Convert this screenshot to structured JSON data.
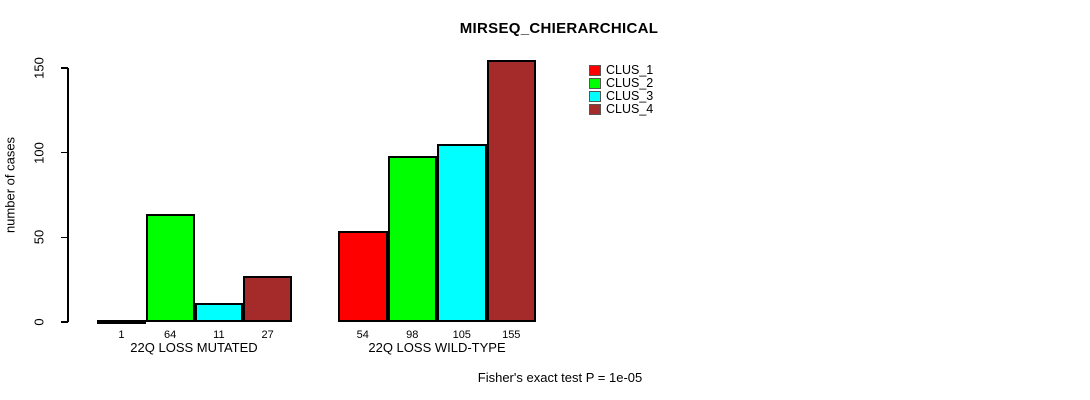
{
  "title": "MIRSEQ_CHIERARCHICAL",
  "chart_data": {
    "type": "bar",
    "title": "MIRSEQ_CHIERARCHICAL",
    "xlabel": "",
    "ylabel": "number of cases",
    "ylim": [
      0,
      155
    ],
    "yticks": [
      0,
      50,
      100,
      150
    ],
    "grid": false,
    "legend_position": "top-right",
    "categories": [
      "22Q LOSS MUTATED",
      "22Q LOSS WILD-TYPE"
    ],
    "series": [
      {
        "name": "CLUS_1",
        "color": "#FF0000",
        "values": [
          1,
          54
        ]
      },
      {
        "name": "CLUS_2",
        "color": "#00FF00",
        "values": [
          64,
          98
        ]
      },
      {
        "name": "CLUS_3",
        "color": "#00FFFF",
        "values": [
          11,
          105
        ]
      },
      {
        "name": "CLUS_4",
        "color": "#A52A2A",
        "values": [
          27,
          155
        ]
      }
    ],
    "bar_labels": [
      [
        "1",
        "64",
        "11",
        "27"
      ],
      [
        "54",
        "98",
        "105",
        "155"
      ]
    ],
    "annotation": "Fisher's exact test P = 1e-05"
  },
  "colors": {
    "axis": "#000000",
    "background": "#FFFFFF",
    "bar_border": "#000000"
  }
}
